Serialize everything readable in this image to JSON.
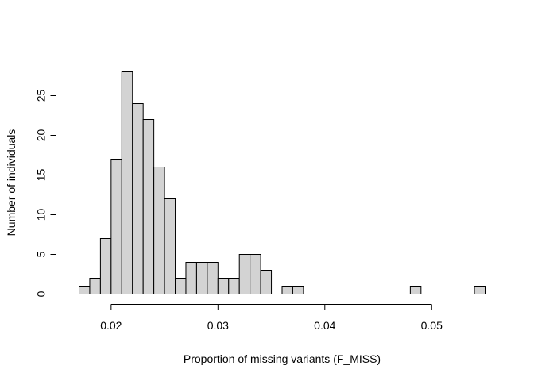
{
  "chart_data": {
    "type": "bar",
    "xlabel": "Proportion of missing variants (F_MISS)",
    "ylabel": "Number of individuals",
    "bin_start": 0.017,
    "bin_width": 0.001,
    "values": [
      1,
      2,
      7,
      17,
      28,
      24,
      22,
      16,
      12,
      2,
      4,
      4,
      4,
      2,
      2,
      5,
      5,
      3,
      0,
      1,
      1,
      0,
      0,
      0,
      0,
      0,
      0,
      0,
      0,
      0,
      0,
      1,
      0,
      0,
      0,
      0,
      0,
      1
    ],
    "xlim": [
      0.017,
      0.055
    ],
    "ylim": [
      0,
      28
    ],
    "xticks": [
      0.02,
      0.03,
      0.04,
      0.05
    ],
    "xtick_labels": [
      "0.02",
      "0.03",
      "0.04",
      "0.05"
    ],
    "yticks": [
      0,
      5,
      10,
      15,
      20,
      25
    ],
    "ytick_labels": [
      "0",
      "5",
      "10",
      "15",
      "20",
      "25"
    ],
    "bar_color": "#d3d3d3",
    "grid": false,
    "legend": "none"
  }
}
